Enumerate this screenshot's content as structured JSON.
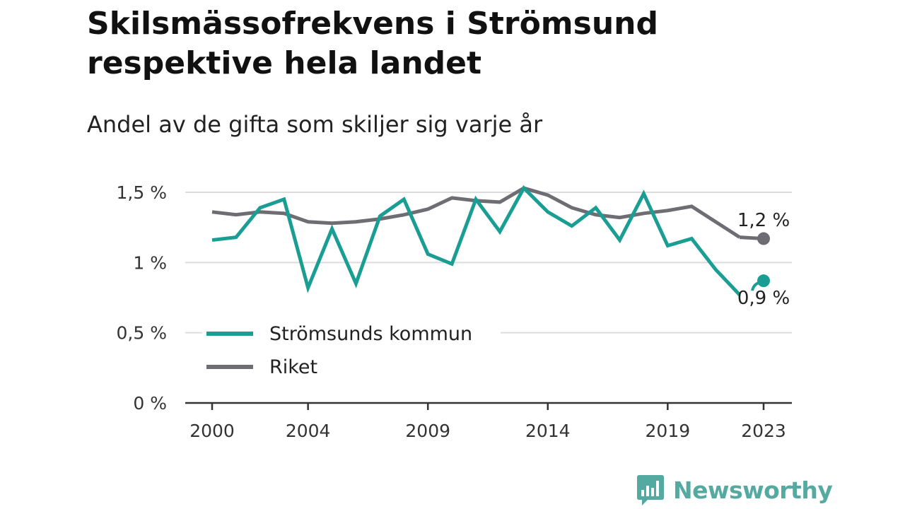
{
  "header": {
    "title": "Skilsmässofrekvens i Strömsund respektive hela landet",
    "subtitle": "Andel av de gifta som skiljer sig varje år"
  },
  "brand": {
    "name": "Newsworthy",
    "icon": "newsworthy-logo-icon",
    "color": "#54aaa0"
  },
  "chart_data": {
    "type": "line",
    "title": "Skilsmässofrekvens i Strömsund respektive hela landet",
    "subtitle": "Andel av de gifta som skiljer sig varje år",
    "xlabel": "",
    "ylabel": "",
    "x": [
      2000,
      2001,
      2002,
      2003,
      2004,
      2005,
      2006,
      2007,
      2008,
      2009,
      2010,
      2011,
      2012,
      2013,
      2014,
      2015,
      2016,
      2017,
      2018,
      2019,
      2020,
      2021,
      2022,
      2023
    ],
    "x_ticks": [
      2000,
      2004,
      2009,
      2014,
      2019,
      2023
    ],
    "x_tick_labels": [
      "2000",
      "2004",
      "2009",
      "2014",
      "2019",
      "2023"
    ],
    "ylim": [
      0,
      1.5
    ],
    "y_ticks": [
      0,
      0.5,
      1,
      1.5
    ],
    "y_tick_labels": [
      "0 %",
      "0,5 %",
      "1 %",
      "1,5 %"
    ],
    "grid": true,
    "legend_position": "bottom-left",
    "series": [
      {
        "name": "Strömsunds kommun",
        "color": "#1a9e94",
        "values": [
          1.16,
          1.18,
          1.39,
          1.45,
          0.82,
          1.24,
          0.85,
          1.33,
          1.45,
          1.06,
          0.99,
          1.45,
          1.22,
          1.53,
          1.36,
          1.26,
          1.39,
          1.16,
          1.49,
          1.12,
          1.17,
          0.95,
          0.77,
          0.87
        ],
        "end_label": "0,9 %"
      },
      {
        "name": "Riket",
        "color": "#6d6d73",
        "values": [
          1.36,
          1.34,
          1.36,
          1.35,
          1.29,
          1.28,
          1.29,
          1.31,
          1.34,
          1.38,
          1.46,
          1.44,
          1.43,
          1.53,
          1.48,
          1.39,
          1.34,
          1.32,
          1.35,
          1.37,
          1.4,
          1.29,
          1.18,
          1.17
        ],
        "end_label": "1,2 %"
      }
    ]
  }
}
